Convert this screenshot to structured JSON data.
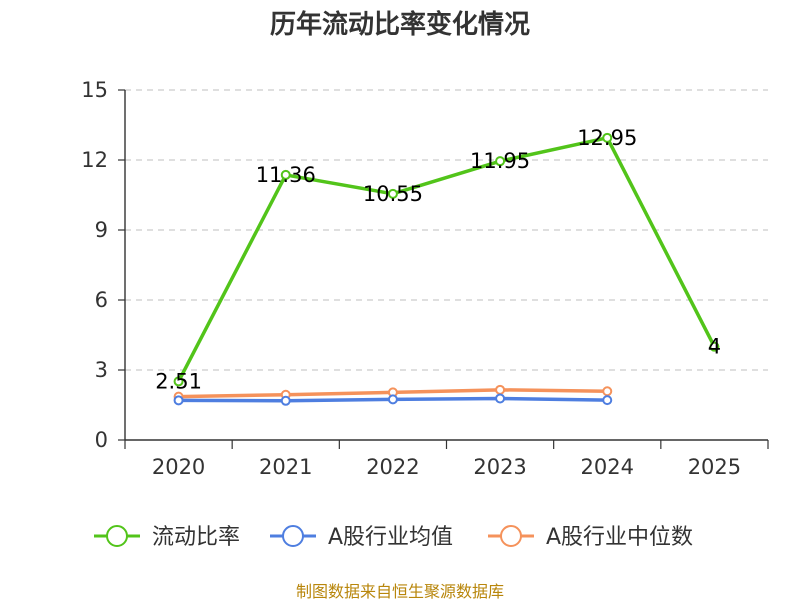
{
  "chart_data": {
    "type": "line",
    "title": "历年流动比率变化情况",
    "categories": [
      "2020",
      "2021",
      "2022",
      "2023",
      "2024",
      "2025"
    ],
    "series": [
      {
        "name": "流动比率",
        "color": "#52c41a",
        "values": [
          2.51,
          11.36,
          10.55,
          11.95,
          12.95,
          4
        ],
        "labels": [
          "2.51",
          "11.36",
          "10.55",
          "11.95",
          "12.95",
          "4"
        ]
      },
      {
        "name": "A股行业均值",
        "color": "#4e7ee0",
        "values": [
          1.7,
          1.68,
          1.74,
          1.78,
          1.71,
          null
        ]
      },
      {
        "name": "A股行业中位数",
        "color": "#f5925b",
        "values": [
          1.86,
          1.94,
          2.04,
          2.15,
          2.09,
          null
        ]
      }
    ],
    "ylim": [
      0,
      15
    ],
    "yticks": [
      0,
      3,
      6,
      9,
      12,
      15
    ],
    "grid": true,
    "legend_position": "bottom"
  },
  "source": "制图数据来自恒生聚源数据库"
}
